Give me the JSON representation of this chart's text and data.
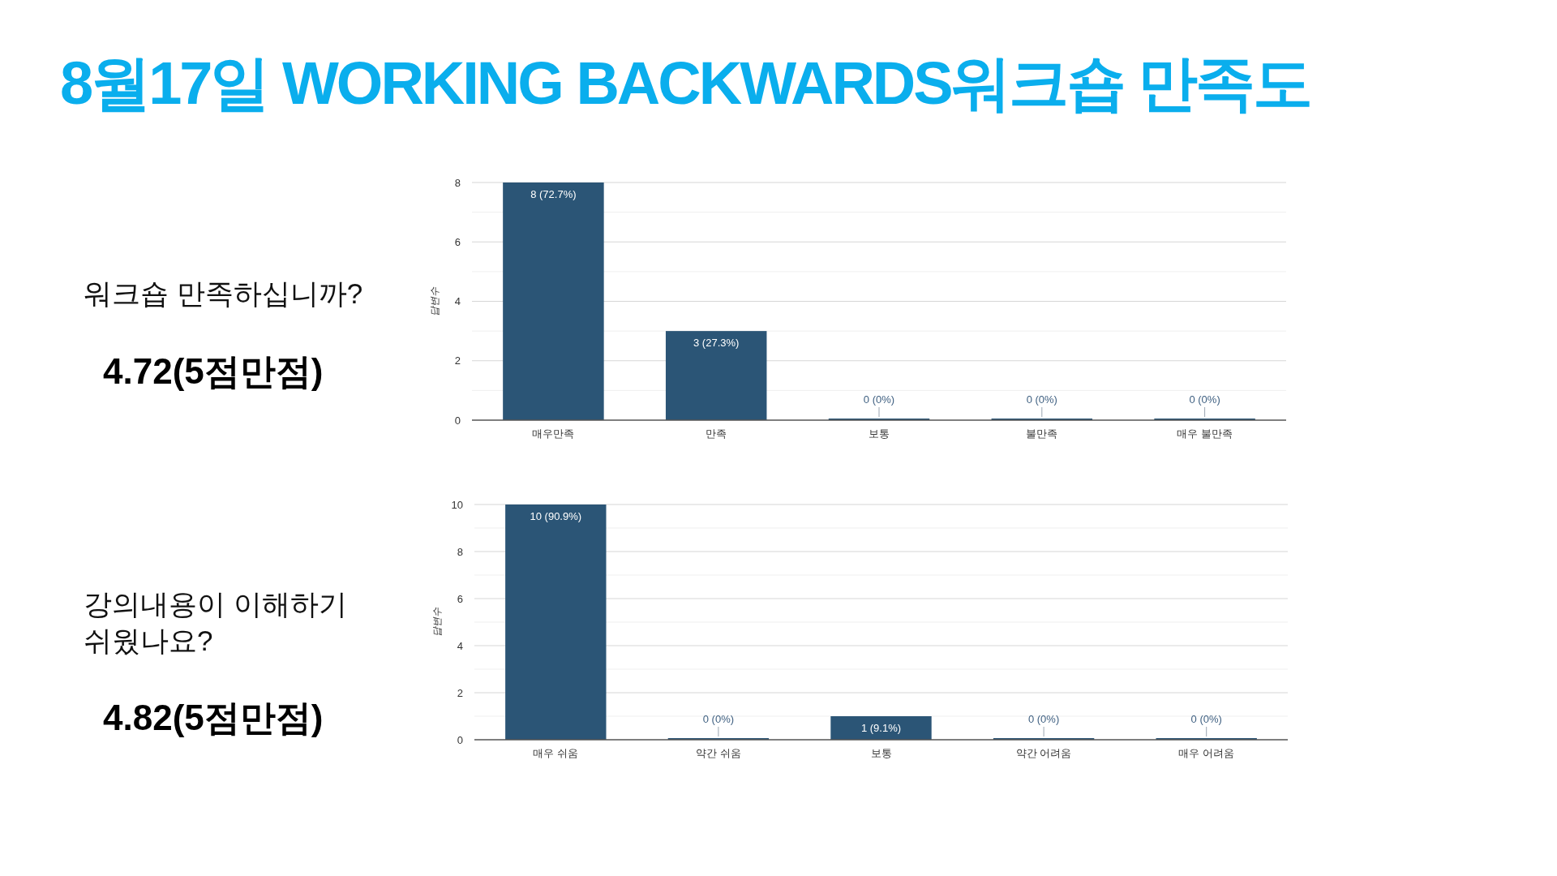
{
  "chart_data": [
    {
      "type": "bar",
      "title": "8월17일 WORKING BACKWARDS워크숍 만족도",
      "subtitle": "워크숍 만족하십니까?",
      "annotations": [
        "4.72(5점만점)"
      ],
      "ylabel": "답변수",
      "categories": [
        "매우만족",
        "만족",
        "보통",
        "불만족",
        "매우 불만족"
      ],
      "values": [
        8,
        3,
        0,
        0,
        0
      ],
      "value_labels": [
        "8 (72.7%)",
        "3 (27.3%)",
        "0 (0%)",
        "0 (0%)",
        "0 (0%)"
      ],
      "color": "#2b5576",
      "ylim": [
        0,
        8
      ],
      "yticks": [
        0,
        {
          "value": 1,
          "label": null
        },
        2,
        {
          "value": 3,
          "label": null
        },
        4,
        {
          "value": 5,
          "label": null
        },
        6,
        {
          "value": 7,
          "label": null
        },
        8
      ],
      "grid": "y"
    },
    {
      "type": "bar",
      "subtitle": "강의내용이 이해하기\n쉬웠나요?",
      "annotations": [
        "4.82(5점만점)"
      ],
      "ylabel": "답변수",
      "categories": [
        "매우 쉬움",
        "약간 쉬움",
        "보통",
        "약간 어려움",
        "매우 어려움"
      ],
      "values": [
        10,
        0,
        1,
        0,
        0
      ],
      "value_labels": [
        "10 (90.9%)",
        "0 (0%)",
        "1 (9.1%)",
        "0 (0%)",
        "0 (0%)"
      ],
      "color": "#2b5576",
      "ylim": [
        0,
        10
      ],
      "yticks": [
        0,
        {
          "value": 1,
          "label": null
        },
        2,
        {
          "value": 3,
          "label": null
        },
        4,
        {
          "value": 5,
          "label": null
        },
        6,
        {
          "value": 7,
          "label": null
        },
        8,
        {
          "value": 9,
          "label": null
        },
        10
      ],
      "grid": "y"
    }
  ]
}
